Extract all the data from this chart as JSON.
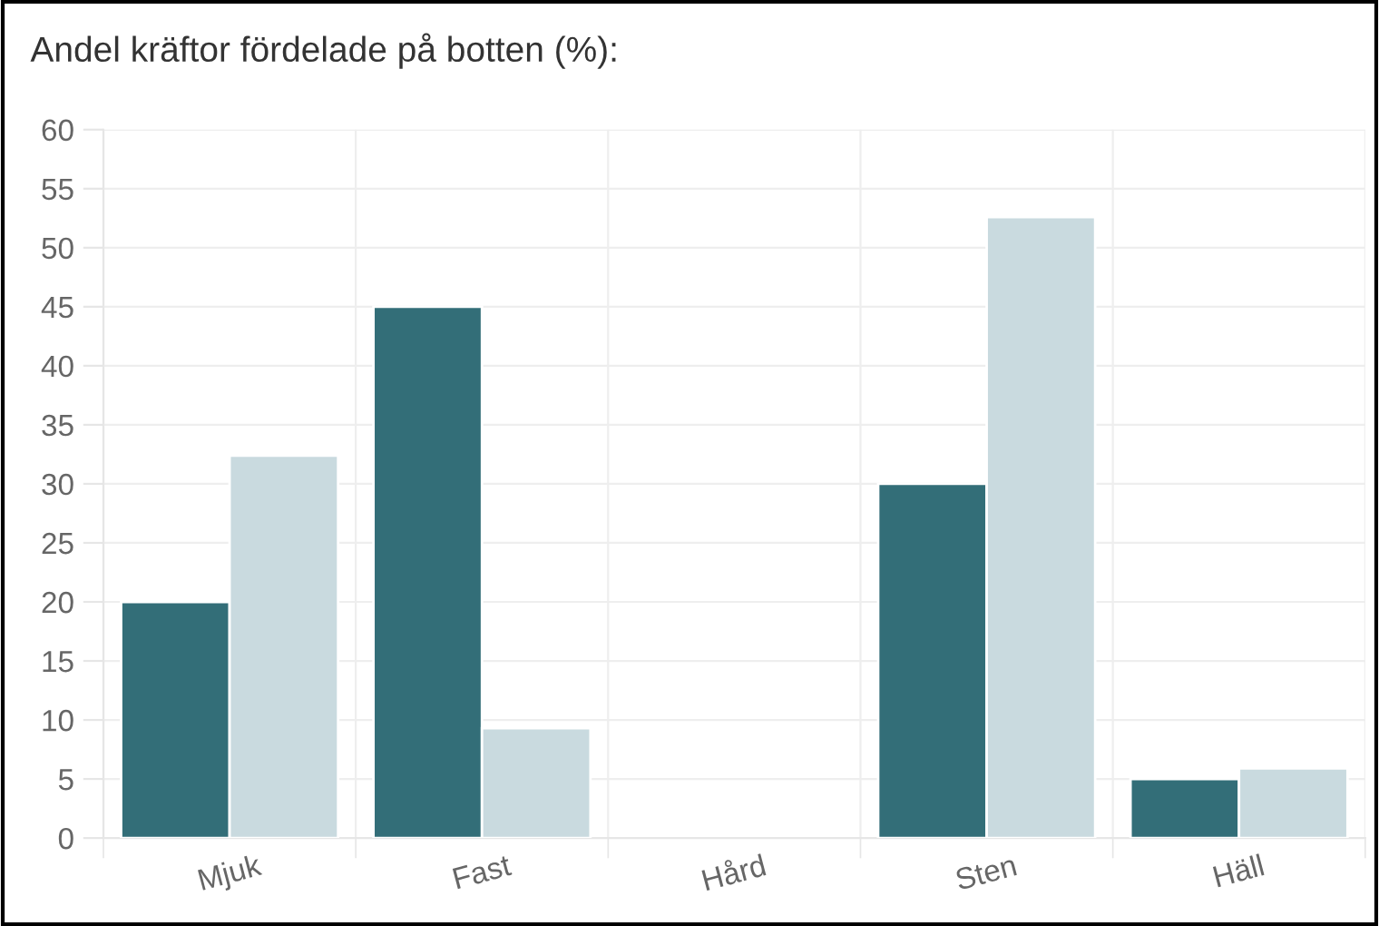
{
  "chart_data": {
    "type": "bar",
    "title": "Andel kräftor fördelade på botten (%):",
    "categories": [
      "Mjuk",
      "Fast",
      "Hård",
      "Sten",
      "Häll"
    ],
    "series": [
      {
        "color": "#336e78",
        "values": [
          20,
          45,
          0,
          30,
          5
        ]
      },
      {
        "color": "#c9dadf",
        "values": [
          32.4,
          9.3,
          0,
          52.6,
          5.9
        ]
      }
    ],
    "ylim": [
      0,
      60
    ],
    "yticks": [
      0,
      5,
      10,
      15,
      20,
      25,
      30,
      35,
      40,
      45,
      50,
      55,
      60
    ],
    "grid": true,
    "legend": false
  }
}
